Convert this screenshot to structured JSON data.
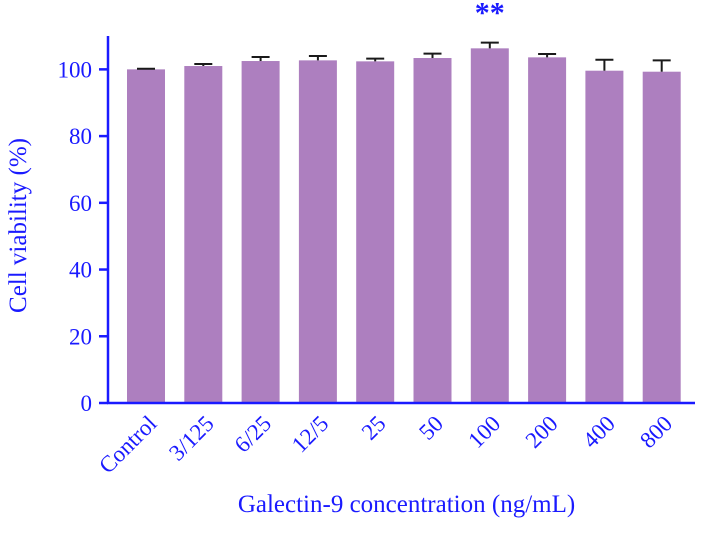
{
  "chart_data": {
    "type": "bar",
    "title": "",
    "xlabel": "Galectin-9 concentration (ng/mL)",
    "ylabel": "Cell viability (%)",
    "ylim": [
      0,
      110
    ],
    "yticks": [
      0,
      20,
      40,
      60,
      80,
      100
    ],
    "categories": [
      "Control",
      "3/125",
      "6/25",
      "12/5",
      "25",
      "50",
      "100",
      "200",
      "400",
      "800"
    ],
    "values": [
      100,
      101,
      102.5,
      102.7,
      102.4,
      103.4,
      106.3,
      103.6,
      99.6,
      99.3
    ],
    "errors": [
      0.2,
      0.6,
      1.2,
      1.3,
      0.8,
      1.3,
      1.7,
      1.0,
      3.3,
      3.4
    ],
    "annotations": [
      {
        "category": "100",
        "text": "**"
      }
    ],
    "colors": {
      "bar": "#ad7fbf",
      "axis": "#1a1aff",
      "error_bar": "#1a1a1a"
    }
  }
}
